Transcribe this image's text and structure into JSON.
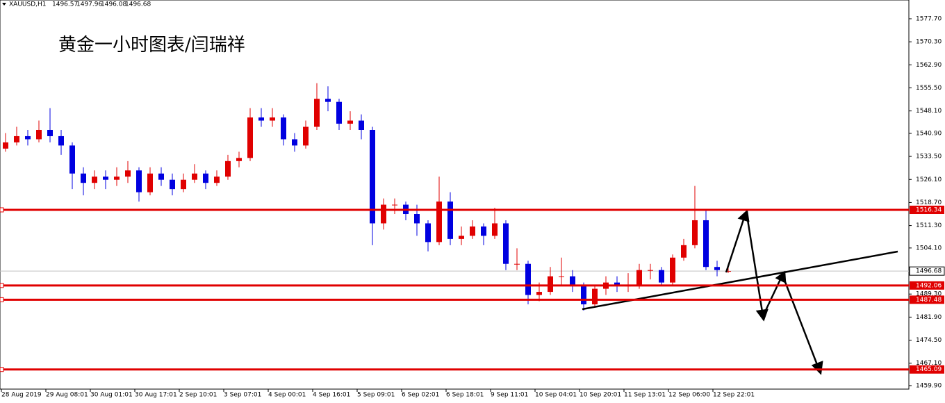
{
  "chart_data": {
    "type": "candlestick",
    "symbol": "XAUUSD,H1",
    "title": "黄金一小时图表/闫瑞祥",
    "up_color": "#e00000",
    "down_color": "#0000e0",
    "level_color": "#e00000",
    "current_color": "#c0c0c0",
    "ylim": [
      1458.78,
      1583.72
    ],
    "yticks": [
      {
        "value": 1577.7,
        "label": "1577.70"
      },
      {
        "value": 1570.3,
        "label": "1570.30"
      },
      {
        "value": 1562.9,
        "label": "1562.90"
      },
      {
        "value": 1555.5,
        "label": "1555.50"
      },
      {
        "value": 1548.1,
        "label": "1548.10"
      },
      {
        "value": 1540.9,
        "label": "1540.90"
      },
      {
        "value": 1533.5,
        "label": "1533.50"
      },
      {
        "value": 1526.1,
        "label": "1526.10"
      },
      {
        "value": 1518.7,
        "label": "1518.70"
      },
      {
        "value": 1511.3,
        "label": "1511.30"
      },
      {
        "value": 1504.1,
        "label": "1504.10"
      },
      {
        "value": 1489.3,
        "label": "1489.30"
      },
      {
        "value": 1481.9,
        "label": "1481.90"
      },
      {
        "value": 1474.5,
        "label": "1474.50"
      },
      {
        "value": 1467.1,
        "label": "1467.10"
      },
      {
        "value": 1459.9,
        "label": "1459.90"
      }
    ],
    "xlabels": [
      "28 Aug 2019",
      "29 Aug 08:01",
      "30 Aug 01:01",
      "30 Aug 17:01",
      "2 Sep 10:01",
      "3 Sep 07:01",
      "4 Sep 00:01",
      "4 Sep 16:01",
      "5 Sep 09:01",
      "6 Sep 02:01",
      "6 Sep 18:01",
      "9 Sep 11:01",
      "10 Sep 04:01",
      "10 Sep 20:01",
      "11 Sep 13:01",
      "12 Sep 06:00",
      "12 Sep 22:01"
    ],
    "levels": [
      1516.34,
      1492.06,
      1487.48,
      1465.09
    ],
    "current": 1496.68,
    "candles": [
      [
        1536,
        1541,
        1535,
        1538
      ],
      [
        1538,
        1543,
        1537,
        1540
      ],
      [
        1540,
        1542,
        1537,
        1539
      ],
      [
        1539,
        1545,
        1538,
        1542
      ],
      [
        1542,
        1549,
        1538,
        1540
      ],
      [
        1540,
        1542,
        1534,
        1537
      ],
      [
        1537,
        1538,
        1523,
        1528
      ],
      [
        1528,
        1530,
        1521,
        1525
      ],
      [
        1525,
        1529,
        1523,
        1527
      ],
      [
        1527,
        1529,
        1523,
        1526
      ],
      [
        1526,
        1530,
        1524,
        1527
      ],
      [
        1527,
        1532,
        1525,
        1529
      ],
      [
        1529,
        1530,
        1519,
        1522
      ],
      [
        1522,
        1530,
        1521,
        1528
      ],
      [
        1528,
        1530,
        1524,
        1526
      ],
      [
        1526,
        1528,
        1521,
        1523
      ],
      [
        1523,
        1528,
        1522,
        1526
      ],
      [
        1526,
        1531,
        1525,
        1528
      ],
      [
        1528,
        1529,
        1523,
        1525
      ],
      [
        1525,
        1529,
        1524,
        1527
      ],
      [
        1527,
        1534,
        1526,
        1532
      ],
      [
        1532,
        1535,
        1530,
        1533
      ],
      [
        1533,
        1549,
        1532,
        1546
      ],
      [
        1546,
        1549,
        1543,
        1545
      ],
      [
        1545,
        1549,
        1543,
        1546
      ],
      [
        1546,
        1547,
        1537,
        1539
      ],
      [
        1539,
        1541,
        1535,
        1537
      ],
      [
        1537,
        1545,
        1536,
        1543
      ],
      [
        1543,
        1557,
        1542,
        1552
      ],
      [
        1552,
        1556,
        1548,
        1551
      ],
      [
        1551,
        1552,
        1542,
        1544
      ],
      [
        1544,
        1548,
        1542,
        1545
      ],
      [
        1545,
        1547,
        1539,
        1542
      ],
      [
        1542,
        1543,
        1505,
        1512
      ],
      [
        1512,
        1520,
        1510,
        1518
      ],
      [
        1518,
        1520,
        1515,
        1518
      ],
      [
        1518,
        1519,
        1513,
        1515
      ],
      [
        1515,
        1518,
        1508,
        1512
      ],
      [
        1512,
        1513,
        1503,
        1506
      ],
      [
        1506,
        1527,
        1505,
        1519
      ],
      [
        1519,
        1522,
        1505,
        1507
      ],
      [
        1507,
        1511,
        1505,
        1508
      ],
      [
        1508,
        1513,
        1507,
        1511
      ],
      [
        1511,
        1512,
        1505,
        1508
      ],
      [
        1508,
        1517,
        1507,
        1512
      ],
      [
        1512,
        1513,
        1497,
        1499
      ],
      [
        1499,
        1504,
        1497,
        1499
      ],
      [
        1499,
        1500,
        1486,
        1489
      ],
      [
        1489,
        1493,
        1487,
        1490
      ],
      [
        1490,
        1498,
        1489,
        1495
      ],
      [
        1495,
        1501,
        1492,
        1495
      ],
      [
        1495,
        1497,
        1490,
        1492
      ],
      [
        1492,
        1493,
        1484,
        1486
      ],
      [
        1486,
        1492,
        1485,
        1491
      ],
      [
        1491,
        1495,
        1489,
        1493
      ],
      [
        1493,
        1495,
        1490,
        1492
      ],
      [
        1492,
        1496,
        1490,
        1492
      ],
      [
        1492,
        1499,
        1491,
        1497
      ],
      [
        1497,
        1499,
        1494,
        1497
      ],
      [
        1497,
        1498,
        1492,
        1493
      ],
      [
        1493,
        1502,
        1492,
        1501
      ],
      [
        1501,
        1507,
        1500,
        1505
      ],
      [
        1505,
        1524,
        1504,
        1513
      ],
      [
        1513,
        1516,
        1497,
        1498
      ],
      [
        1498,
        1500,
        1495,
        1497
      ],
      [
        1496.57,
        1497.96,
        1496.08,
        1496.68
      ]
    ]
  }
}
